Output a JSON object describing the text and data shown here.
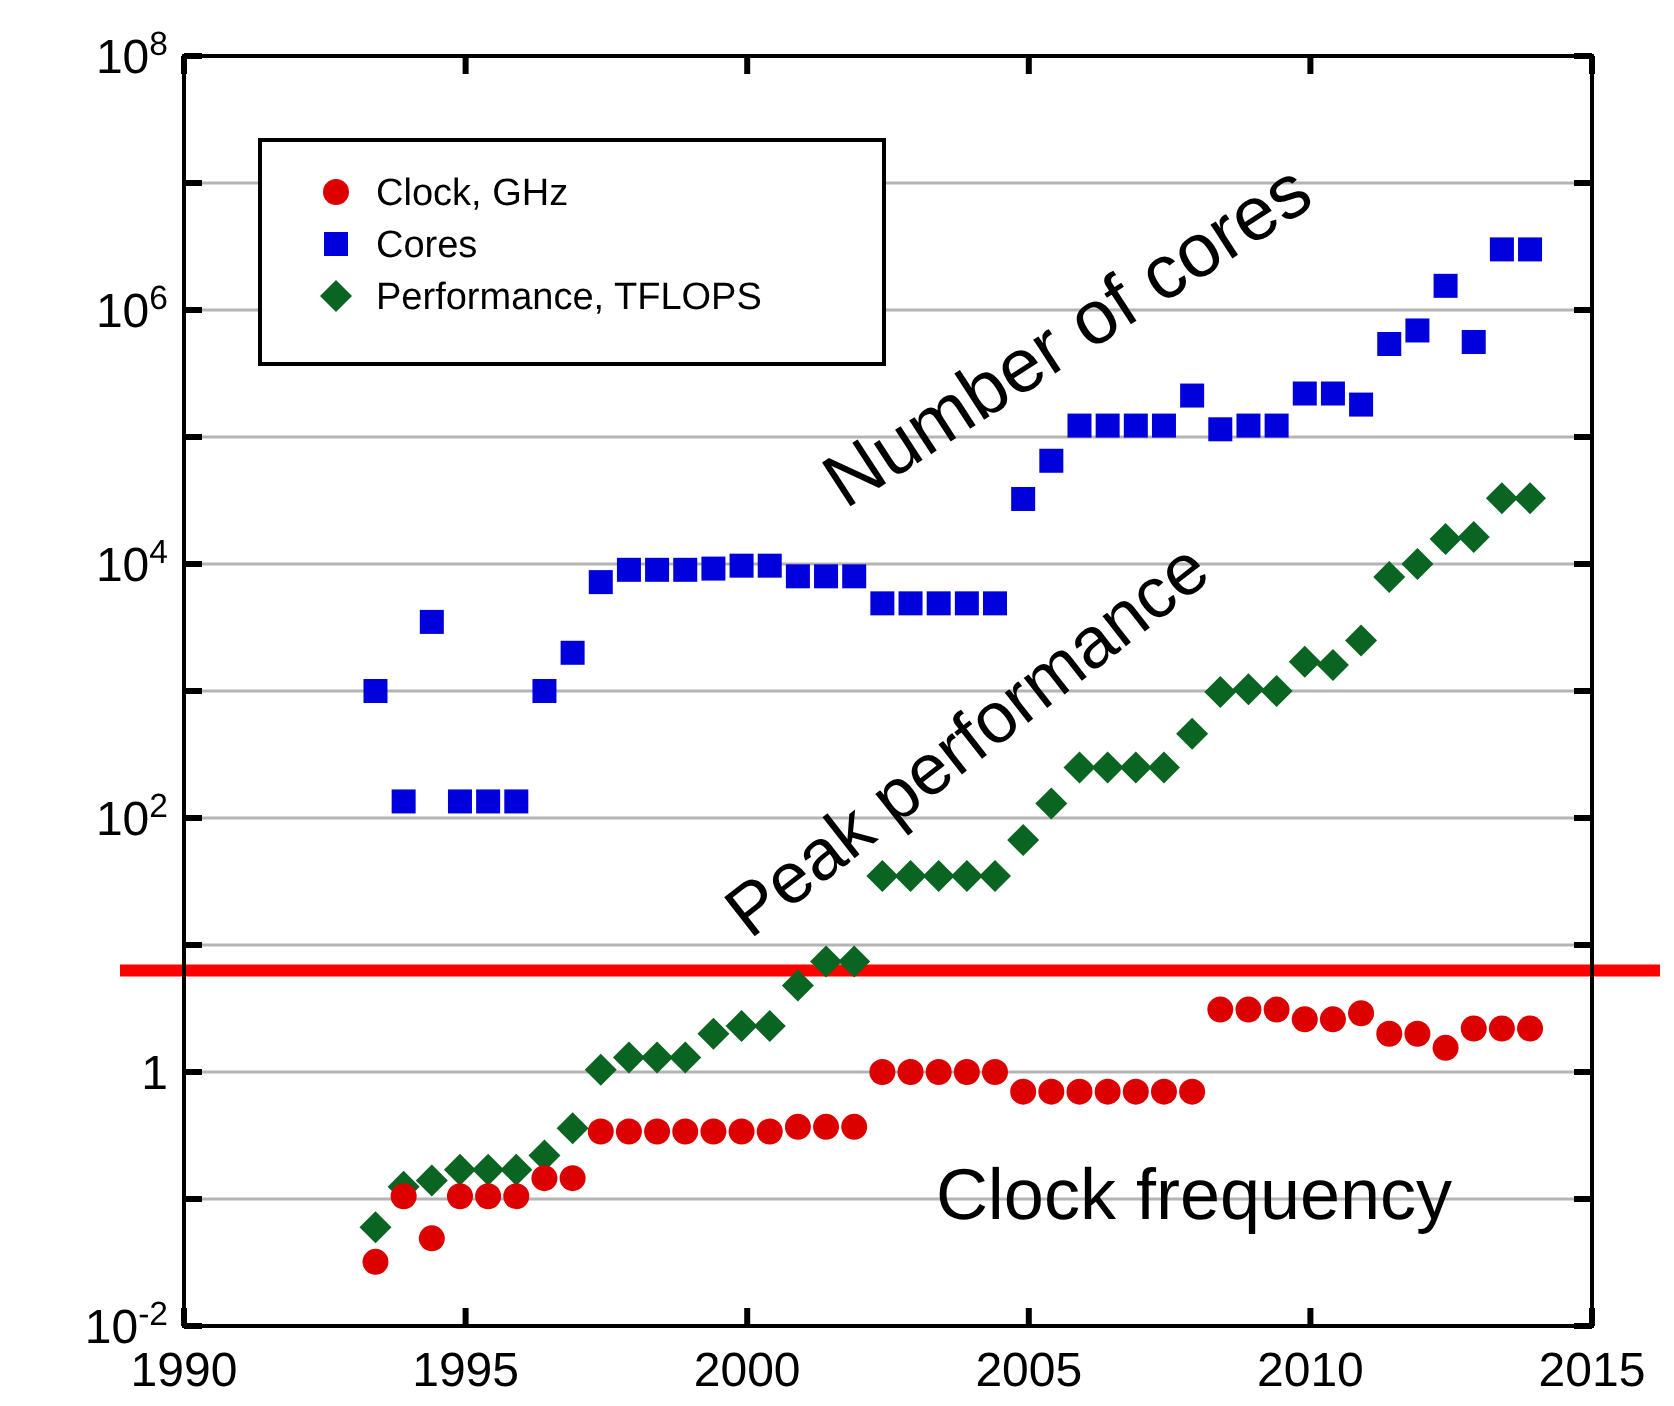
{
  "chart_data": {
    "type": "scatter",
    "x": [
      1993.4,
      1993.9,
      1994.4,
      1994.9,
      1995.4,
      1995.9,
      1996.4,
      1996.9,
      1997.4,
      1997.9,
      1998.4,
      1998.9,
      1999.4,
      1999.9,
      2000.4,
      2000.9,
      2001.4,
      2001.9,
      2002.4,
      2002.9,
      2003.4,
      2003.9,
      2004.4,
      2004.9,
      2005.4,
      2005.9,
      2006.4,
      2006.9,
      2007.4,
      2007.9,
      2008.4,
      2008.9,
      2009.4,
      2009.9,
      2010.4,
      2010.9,
      2011.4,
      2011.9,
      2012.4,
      2012.9,
      2013.4,
      2013.9
    ],
    "series": [
      {
        "name": "Clock, GHz",
        "color": "#dd0000",
        "marker": "circle",
        "values": [
          0.032,
          0.105,
          0.049,
          0.105,
          0.105,
          0.105,
          0.146,
          0.146,
          0.34,
          0.34,
          0.34,
          0.34,
          0.34,
          0.34,
          0.34,
          0.37,
          0.37,
          0.37,
          1.0,
          1.0,
          1.0,
          1.0,
          1.0,
          0.7,
          0.7,
          0.7,
          0.7,
          0.7,
          0.7,
          0.7,
          3.1,
          3.1,
          3.1,
          2.6,
          2.6,
          2.9,
          2.0,
          2.0,
          1.55,
          2.2,
          2.2,
          2.2
        ]
      },
      {
        "name": "Cores",
        "color": "#0000dd",
        "marker": "square",
        "values": [
          1000,
          135,
          3500,
          135,
          135,
          135,
          1000,
          2000,
          7200,
          9000,
          9000,
          9000,
          9200,
          9700,
          9700,
          8000,
          8000,
          8000,
          4900,
          4900,
          4900,
          4900,
          4900,
          32500,
          65000,
          123000,
          123000,
          123000,
          123000,
          212000,
          115000,
          123000,
          123000,
          220000,
          220000,
          180000,
          540000,
          690000,
          1550000,
          560000,
          3000000,
          3000000
        ]
      },
      {
        "name": "Performance, TFLOPS",
        "color": "#0a6422",
        "marker": "diamond",
        "values": [
          0.06,
          0.125,
          0.14,
          0.17,
          0.17,
          0.17,
          0.22,
          0.36,
          1.04,
          1.3,
          1.3,
          1.3,
          2.0,
          2.3,
          2.3,
          4.8,
          7.4,
          7.4,
          35,
          35,
          35,
          35,
          35,
          67,
          130,
          250,
          250,
          250,
          250,
          460,
          980,
          1030,
          1000,
          1700,
          1600,
          2500,
          7900,
          10000,
          15700,
          16300,
          33000,
          33000
        ]
      }
    ],
    "xlim": [
      1990,
      2015
    ],
    "xticks": [
      1990,
      1995,
      2000,
      2005,
      2010,
      2015
    ],
    "ylim": [
      0.01,
      100000000
    ],
    "log": "y",
    "yticks": [
      {
        "value": 0.01,
        "label": "10$^{-2}$"
      },
      {
        "value": 0.1,
        "label": null
      },
      1,
      {
        "value": 10,
        "label": null
      },
      {
        "value": 100,
        "label": "10$^{2}$"
      },
      {
        "value": 1000,
        "label": null
      },
      {
        "value": 10000,
        "label": "10$^{4}$"
      },
      {
        "value": 100000,
        "label": null
      },
      {
        "value": 1000000,
        "label": "10$^{6}$"
      },
      {
        "value": 10000000,
        "label": null
      },
      {
        "value": 100000000,
        "label": "10$^{8}$"
      }
    ],
    "grid": "y",
    "legend": "top left",
    "ref_lines": [
      {
        "axis": "y",
        "value": 6.3,
        "color": "#ff0000"
      }
    ],
    "annotations": [
      "Number of cores",
      "Peak performance",
      "Clock frequency"
    ]
  }
}
